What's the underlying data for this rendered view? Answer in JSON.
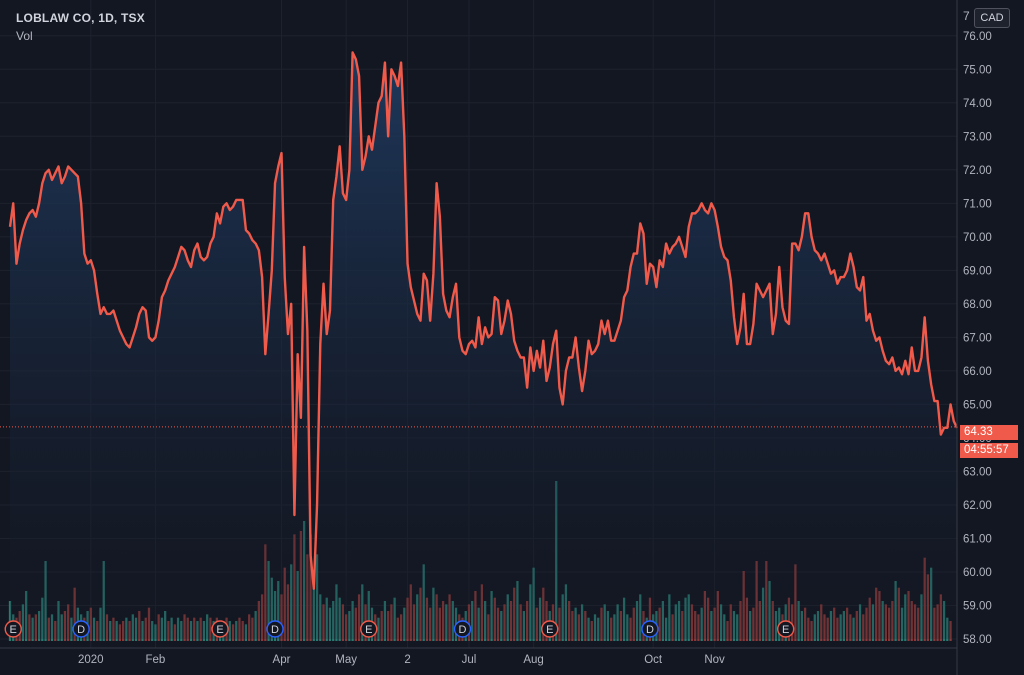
{
  "header": {
    "symbol_line": "LOBLAW CO, 1D, TSX",
    "volume_label": "Vol",
    "currency_button": "CAD",
    "clipped_top_label": "7"
  },
  "price_tag": {
    "last_price": "64.33",
    "countdown": "04:55:57"
  },
  "colors": {
    "background": "#131722",
    "line": "#f05a4a",
    "area_top": "#1f3a5f",
    "volume_up": "#2a7a72",
    "volume_down": "#8a3a3a",
    "marker_e": "#f05a4a",
    "marker_d": "#2962ff"
  },
  "chart_data": {
    "type": "line",
    "ylim": [
      58,
      76.5
    ],
    "y_ticks": [
      "58.00",
      "59.00",
      "60.00",
      "61.00",
      "62.00",
      "63.00",
      "64.00",
      "65.00",
      "66.00",
      "67.00",
      "68.00",
      "69.00",
      "70.00",
      "71.00",
      "72.00",
      "73.00",
      "74.00",
      "75.00",
      "76.00"
    ],
    "x_ticks": [
      {
        "label": "2020",
        "at": 25
      },
      {
        "label": "Feb",
        "at": 45
      },
      {
        "label": "Apr",
        "at": 84
      },
      {
        "label": "May",
        "at": 104
      },
      {
        "label": "2",
        "at": 123
      },
      {
        "label": "Jul",
        "at": 142
      },
      {
        "label": "Aug",
        "at": 162
      },
      {
        "label": "Oct",
        "at": 199
      },
      {
        "label": "Nov",
        "at": 218
      }
    ],
    "last_price_line": 64.33,
    "price": [
      70.3,
      71,
      69.2,
      69.8,
      70.2,
      70.5,
      70.7,
      70.8,
      70.6,
      71,
      71.6,
      71.9,
      72,
      71.7,
      71.9,
      72.1,
      71.6,
      71.8,
      72.1,
      72,
      71.9,
      71.8,
      71,
      69.5,
      69.2,
      69.3,
      69,
      68.3,
      67.7,
      67.9,
      67.7,
      67.7,
      67.8,
      67.5,
      67.2,
      67,
      66.8,
      66.7,
      67,
      67.3,
      67.7,
      67.9,
      67.8,
      67,
      66.9,
      67,
      67.5,
      68.2,
      68.4,
      68.7,
      68.9,
      69.1,
      69.4,
      69.7,
      69.6,
      69.3,
      69.1,
      69.6,
      69.8,
      69.4,
      69.3,
      69.4,
      69.8,
      70,
      70.7,
      70.4,
      70.9,
      71,
      70.8,
      70.9,
      71.1,
      71.1,
      71.1,
      70.2,
      70.1,
      69.9,
      69.8,
      69.6,
      68.8,
      66.5,
      67.7,
      69,
      71.6,
      72.1,
      72.5,
      68.8,
      67.1,
      68,
      61.7,
      66.5,
      64.6,
      69.7,
      67.2,
      60.5,
      59.5,
      62,
      66.8,
      68.6,
      67.1,
      67.8,
      71.1,
      71.8,
      72.7,
      71.3,
      71.1,
      72,
      75.5,
      75.3,
      74.8,
      72,
      72.4,
      73,
      72.6,
      73.3,
      74,
      74.2,
      75.2,
      73,
      75,
      74.8,
      74.5,
      75.2,
      73,
      69.2,
      68.5,
      68.1,
      67.7,
      67.5,
      68.9,
      68.7,
      67.5,
      68.9,
      71.6,
      70.6,
      68.3,
      67.8,
      67.6,
      68.2,
      68.6,
      67,
      66.6,
      66.5,
      66.8,
      66.9,
      66.7,
      67.6,
      66.8,
      67.3,
      67,
      67.1,
      68.2,
      68.1,
      67.1,
      67.5,
      68.1,
      67.7,
      66.9,
      66.6,
      66.4,
      66.4,
      65.5,
      66.7,
      66,
      66.6,
      66.1,
      66.9,
      65.7,
      66.1,
      66.8,
      67.2,
      65.5,
      65,
      66,
      66.4,
      66.4,
      67,
      66.1,
      65.4,
      66,
      66.9,
      66.5,
      66.6,
      66.8,
      67.5,
      67.1,
      67.5,
      66.9,
      66.9,
      67.2,
      67.5,
      68.2,
      68.4,
      69.1,
      69.5,
      69.5,
      70.4,
      70.1,
      68.6,
      69.2,
      69.1,
      68.5,
      69.3,
      69.1,
      69.8,
      69.5,
      69.7,
      69.8,
      70,
      69.7,
      69.4,
      70.3,
      70.7,
      70.7,
      70.8,
      71,
      70.8,
      70.7,
      71,
      70.8,
      70.3,
      69.7,
      69.4,
      69.3,
      68.7,
      67.6,
      66.8,
      67.3,
      68.3,
      66.8,
      66.8,
      67.4,
      68.6,
      68.4,
      68.2,
      68.4,
      68.6,
      67.1,
      67.7,
      69.1,
      67.9,
      67.5,
      67.4,
      69.8,
      69.8,
      69.6,
      70,
      70.7,
      70.7,
      70,
      69.6,
      69.5,
      69.3,
      69.5,
      69.2,
      68.9,
      69,
      68.6,
      68.8,
      68.8,
      69,
      69.5,
      69.1,
      68.5,
      68.4,
      68.8,
      67.5,
      67.7,
      67.2,
      66.9,
      67,
      66.6,
      66.3,
      66.2,
      66.4,
      66,
      66.1,
      65.9,
      66.3,
      65.9,
      66.7,
      66,
      66,
      66.4,
      67.6,
      66.3,
      65.6,
      65.1,
      65.1,
      64.1,
      64.3,
      64.3,
      65,
      64.5,
      64.3
    ],
    "volume": [
      1.2,
      0.8,
      0.7,
      0.9,
      1.1,
      1.5,
      0.8,
      0.7,
      0.8,
      0.9,
      1.3,
      2.4,
      0.7,
      0.8,
      0.6,
      1.2,
      0.8,
      0.9,
      1.1,
      0.7,
      1.6,
      1,
      0.8,
      0.7,
      0.9,
      1,
      0.7,
      0.6,
      1,
      2.4,
      0.8,
      0.6,
      0.7,
      0.6,
      0.5,
      0.6,
      0.7,
      0.6,
      0.8,
      0.7,
      0.9,
      0.6,
      0.7,
      1,
      0.6,
      0.5,
      0.8,
      0.7,
      0.9,
      0.6,
      0.7,
      0.5,
      0.7,
      0.6,
      0.8,
      0.7,
      0.6,
      0.7,
      0.6,
      0.7,
      0.6,
      0.8,
      0.7,
      0.6,
      0.7,
      0.5,
      0.6,
      0.7,
      0.6,
      0.5,
      0.6,
      0.7,
      0.6,
      0.5,
      0.8,
      0.7,
      0.9,
      1.2,
      1.4,
      2.9,
      2.4,
      1.9,
      1.5,
      1.8,
      1.4,
      2.2,
      1.7,
      2.3,
      3.2,
      2.1,
      3.3,
      3.6,
      2.6,
      3.2,
      1.6,
      2.6,
      1.4,
      1.1,
      1.3,
      1,
      1.2,
      1.7,
      1.3,
      1.1,
      0.8,
      0.9,
      1.2,
      1,
      1.4,
      1.7,
      1.1,
      1.5,
      1,
      0.8,
      0.7,
      0.9,
      1.2,
      0.9,
      1.1,
      1.3,
      0.7,
      0.8,
      1,
      1.3,
      1.7,
      1.1,
      1.4,
      1.6,
      2.3,
      1.3,
      1,
      1.6,
      1.4,
      1,
      1.2,
      1.1,
      1.4,
      1.2,
      1,
      0.8,
      0.7,
      0.9,
      1.1,
      1.2,
      1.5,
      1,
      1.7,
      1.2,
      0.8,
      1.5,
      1.3,
      1,
      0.9,
      1.1,
      1.4,
      1.2,
      1.6,
      1.8,
      1.1,
      0.9,
      1.2,
      1.7,
      2.2,
      1,
      1.3,
      1.6,
      1.2,
      0.9,
      1.1,
      4.8,
      1,
      1.4,
      1.7,
      1.2,
      0.9,
      1,
      0.8,
      1.1,
      0.9,
      0.7,
      0.6,
      0.8,
      0.7,
      1,
      1.1,
      0.9,
      0.7,
      0.8,
      1.1,
      0.9,
      1.3,
      0.8,
      0.7,
      1,
      1.2,
      1.4,
      0.9,
      0.7,
      1.3,
      0.8,
      0.9,
      1,
      1.2,
      0.7,
      1.4,
      0.8,
      1.1,
      1.2,
      0.9,
      1.3,
      1.4,
      1.1,
      0.9,
      0.8,
      1,
      1.5,
      1.3,
      0.9,
      1,
      1.5,
      1.1,
      0.8,
      0.6,
      1.1,
      0.9,
      0.8,
      1.2,
      2.1,
      1.3,
      0.9,
      1,
      2.4,
      1.2,
      1.6,
      2.4,
      1.8,
      1.2,
      0.9,
      1,
      0.8,
      1.1,
      1.3,
      1.1,
      2.3,
      1.2,
      0.9,
      1,
      0.7,
      0.6,
      0.8,
      0.9,
      1.1,
      0.8,
      0.7,
      0.9,
      1,
      0.7,
      0.8,
      0.9,
      1,
      0.8,
      0.7,
      0.9,
      1.1,
      0.8,
      1,
      1.3,
      1.1,
      1.6,
      1.5,
      1.2,
      1.1,
      1,
      1.2,
      1.8,
      1.6,
      1,
      1.4,
      1.5,
      1.2,
      1.1,
      1,
      1.4,
      2.5,
      2,
      2.2,
      1,
      1.1,
      1.4,
      1.2,
      0.7,
      0.6
    ],
    "volume_up": [
      1,
      1,
      0,
      0,
      1,
      1,
      0,
      1,
      0,
      1,
      1,
      1,
      0,
      1,
      0,
      1,
      1,
      0,
      0,
      1,
      0,
      1,
      1,
      0,
      1,
      0,
      1,
      0,
      1,
      1,
      0,
      1,
      0,
      1,
      0,
      0,
      1,
      0,
      1,
      1,
      0,
      1,
      0,
      0,
      1,
      1,
      0,
      1,
      1,
      0,
      1,
      0,
      1,
      1,
      0,
      0,
      1,
      0,
      1,
      0,
      1,
      1,
      0,
      1,
      0,
      1,
      1,
      0,
      1,
      0,
      1,
      0,
      0,
      1,
      0,
      0,
      1,
      0,
      0,
      0,
      1,
      1,
      1,
      1,
      0,
      0,
      0,
      1,
      0,
      1,
      0,
      1,
      0,
      0,
      1,
      1,
      1,
      0,
      1,
      1,
      1,
      1,
      1,
      0,
      0,
      1,
      1,
      0,
      0,
      1,
      0,
      1,
      1,
      0,
      1,
      0,
      1,
      0,
      0,
      1,
      0,
      0,
      1,
      0,
      0,
      0,
      1,
      0,
      1,
      0,
      0,
      1,
      0,
      0,
      0,
      1,
      0,
      1,
      1,
      0,
      0,
      1,
      0,
      1,
      0,
      1,
      0,
      1,
      0,
      1,
      0,
      0,
      1,
      0,
      1,
      0,
      0,
      1,
      0,
      1,
      0,
      1,
      1,
      0,
      1,
      0,
      0,
      1,
      0,
      1,
      0,
      1,
      1,
      0,
      0,
      1,
      0,
      1,
      0,
      1,
      0,
      1,
      1,
      0,
      1,
      1,
      0,
      1,
      1,
      0,
      1,
      1,
      0,
      0,
      1,
      1,
      0,
      1,
      0,
      1,
      1,
      0,
      1,
      1,
      1,
      0,
      1,
      1,
      0,
      1,
      1,
      0,
      0,
      0,
      1,
      0,
      0,
      1,
      0,
      0,
      1,
      1,
      0,
      0,
      1,
      1,
      0,
      0,
      0,
      1,
      0,
      0,
      0,
      1,
      0,
      1,
      0,
      1,
      1,
      0,
      1,
      0,
      0,
      0,
      1,
      1,
      0,
      0,
      0,
      1,
      1,
      0,
      0,
      0,
      1,
      0,
      0,
      1,
      1,
      0,
      0,
      1,
      0,
      1,
      0,
      0,
      0,
      1,
      0,
      0,
      1,
      0,
      0,
      0,
      1,
      0,
      1,
      1,
      0,
      0,
      0,
      0,
      1,
      0,
      0,
      1,
      0,
      0,
      0,
      1,
      1,
      0,
      1,
      0,
      0,
      1
    ],
    "event_markers": [
      {
        "kind": "E",
        "at": 1
      },
      {
        "kind": "D",
        "at": 22
      },
      {
        "kind": "E",
        "at": 65
      },
      {
        "kind": "D",
        "at": 82
      },
      {
        "kind": "E",
        "at": 111
      },
      {
        "kind": "D",
        "at": 140
      },
      {
        "kind": "E",
        "at": 167
      },
      {
        "kind": "D",
        "at": 198
      },
      {
        "kind": "E",
        "at": 240
      }
    ]
  }
}
